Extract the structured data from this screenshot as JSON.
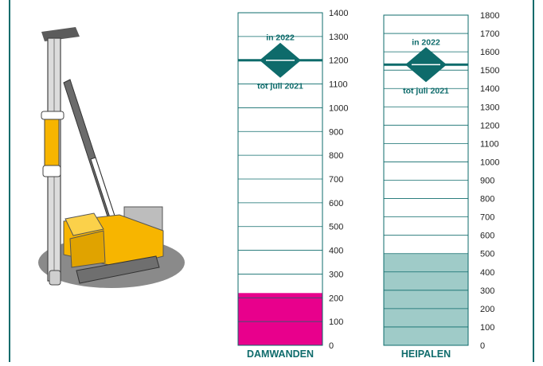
{
  "colors": {
    "frame": "#0e6b6b",
    "teal": "#0e6b6b",
    "damwanden_fill": "#e8008c",
    "heipalen_fill": "#9fcbc8",
    "grid_line": "#0e6b6b",
    "rig_yellow": "#f7b500",
    "rig_grey": "#7a7a7a",
    "shadow": "#8a8a8a"
  },
  "illustration": {
    "icon": "pile-driver-icon"
  },
  "chart_data": [
    {
      "type": "bar",
      "title": "",
      "xlabel": "DAMWANDEN",
      "ylabel": "",
      "ylim": [
        0,
        1400
      ],
      "tick_step": 100,
      "tick_labels": [
        "0",
        "100",
        "200",
        "300",
        "400",
        "500",
        "600",
        "700",
        "800",
        "900",
        "1000",
        "1100",
        "1200",
        "1300",
        "1400"
      ],
      "filled_value": 220,
      "grid": true,
      "target_line_value": 1200,
      "marker_labels": {
        "top": "in 2022",
        "bottom": "tot juli 2021"
      }
    },
    {
      "type": "bar",
      "title": "",
      "xlabel": "HEIPALEN",
      "ylabel": "",
      "ylim": [
        0,
        1800
      ],
      "tick_step": 100,
      "tick_labels": [
        "0",
        "100",
        "200",
        "300",
        "400",
        "500",
        "600",
        "700",
        "800",
        "900",
        "1000",
        "1100",
        "1200",
        "1300",
        "1400",
        "1500",
        "1600",
        "1700",
        "1800"
      ],
      "filled_value": 500,
      "grid": true,
      "target_line_value": 1530,
      "marker_labels": {
        "top": "in 2022",
        "bottom": "tot juli 2021"
      }
    }
  ]
}
